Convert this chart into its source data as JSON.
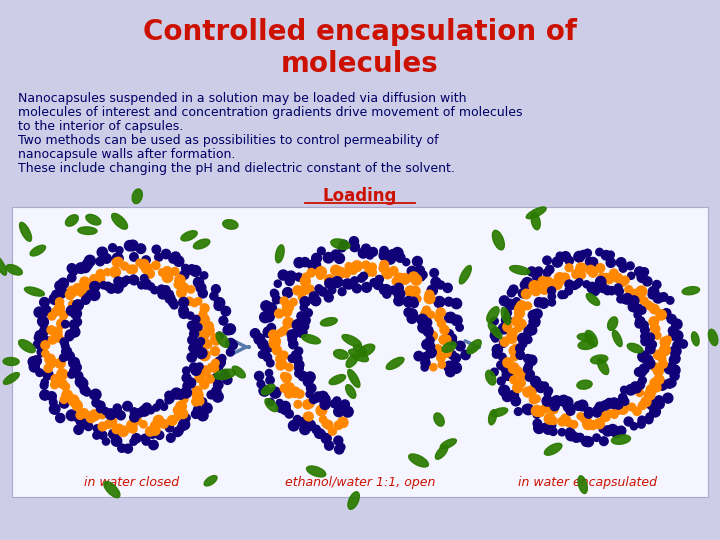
{
  "title_line1": "Controlled encapsulation of",
  "title_line2": "molecules",
  "title_color": "#CC1100",
  "title_fontsize": 20,
  "title_fontweight": "bold",
  "bg_color": "#CDCDE8",
  "body_lines": [
    "Nanocapsules suspended in a solution may be loaded via diffusion with",
    "molecules of interest and concentration gradients drive movement of molecules",
    "to the interior of capsules.",
    "Two methods can be used as possibilities to control permeability of",
    "nanocapsule walls after formation.",
    "These include changing the pH and dielectric constant of the solvent."
  ],
  "body_color": "#000066",
  "body_fontsize": 9,
  "loading_label": "Loading",
  "loading_color": "#CC1100",
  "loading_fontsize": 12,
  "panel_bg": "#F5F5FF",
  "caption_color": "#CC1100",
  "caption_fontsize": 9,
  "captions": [
    "in water closed",
    "ethanol/water 1:1, open",
    "in water encapsulated"
  ],
  "capsule_outer_color": "#110077",
  "capsule_inner_color": "#FF8800",
  "molecule_color": "#2A7A00",
  "arrow_color": "#5577AA"
}
